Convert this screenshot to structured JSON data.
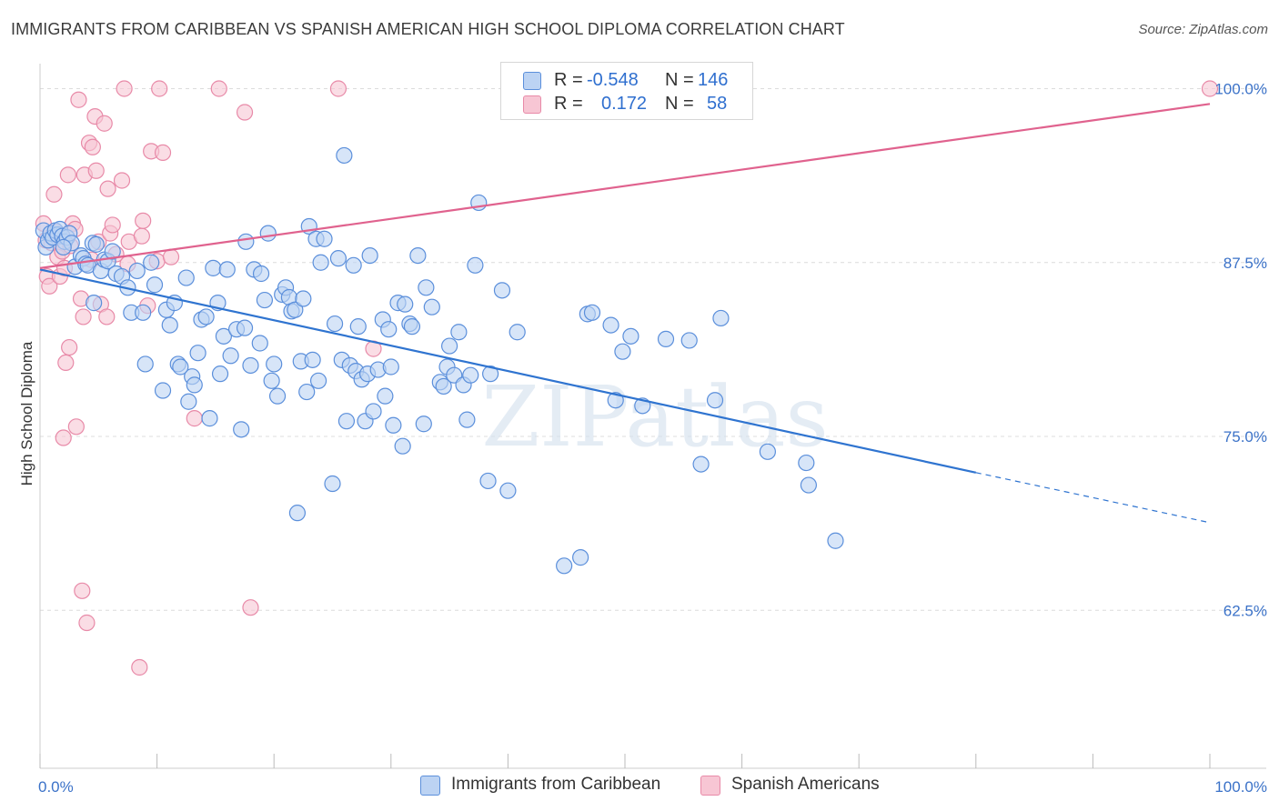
{
  "header": {
    "title": "IMMIGRANTS FROM CARIBBEAN VS SPANISH AMERICAN HIGH SCHOOL DIPLOMA CORRELATION CHART",
    "source": "Source: ZipAtlas.com"
  },
  "watermark": "ZIPatlas",
  "colors": {
    "blue_fill": "#bcd3f3",
    "blue_stroke": "#5b8fdb",
    "blue_line": "#2f74d0",
    "pink_fill": "#f7c6d4",
    "pink_stroke": "#e88aa8",
    "pink_line": "#e0628e",
    "axis_text": "#3b72c8",
    "grid": "#dcdcdc"
  },
  "legend": {
    "rows": [
      {
        "r_label": "R =",
        "r_value": "-0.548",
        "n_label": "N =",
        "n_value": "146"
      },
      {
        "r_label": "R =",
        "r_value": "0.172",
        "n_label": "N =",
        "n_value": "58"
      }
    ]
  },
  "bottom_legend": {
    "series_a": "Immigrants from Caribbean",
    "series_b": "Spanish Americans"
  },
  "chart_data": {
    "type": "scatter",
    "title": "IMMIGRANTS FROM CARIBBEAN VS SPANISH AMERICAN HIGH SCHOOL DIPLOMA CORRELATION CHART",
    "xlabel": "",
    "ylabel": "High School Diploma",
    "xlim": [
      0,
      100
    ],
    "ylim": [
      50,
      101
    ],
    "x_tick_labels": [
      "0.0%",
      "100.0%"
    ],
    "y_ticks": [
      62.5,
      75.0,
      87.5,
      100.0
    ],
    "y_tick_labels": [
      "62.5%",
      "75.0%",
      "87.5%",
      "100.0%"
    ],
    "grid": true,
    "series": [
      {
        "name": "Immigrants from Caribbean",
        "r": -0.548,
        "n": 146,
        "trend": {
          "x0": 0,
          "y0": 87.0,
          "x1": 80,
          "y1": 72.4,
          "dash_to_x": 100,
          "dash_to_y": 68.8
        },
        "points": [
          [
            0.3,
            89.8
          ],
          [
            0.5,
            88.6
          ],
          [
            0.7,
            89.1
          ],
          [
            0.9,
            89.6
          ],
          [
            1.1,
            89.3
          ],
          [
            1.3,
            89.8
          ],
          [
            1.5,
            89.5
          ],
          [
            1.7,
            89.9
          ],
          [
            1.9,
            89.4
          ],
          [
            2.1,
            89.0
          ],
          [
            2.3,
            89.3
          ],
          [
            2.5,
            89.6
          ],
          [
            2.7,
            88.9
          ],
          [
            3.0,
            87.2
          ],
          [
            3.5,
            88.0
          ],
          [
            3.7,
            87.8
          ],
          [
            3.9,
            87.4
          ],
          [
            4.1,
            87.3
          ],
          [
            4.5,
            88.9
          ],
          [
            4.6,
            84.6
          ],
          [
            4.8,
            88.8
          ],
          [
            5.2,
            86.9
          ],
          [
            5.5,
            87.7
          ],
          [
            5.8,
            87.6
          ],
          [
            6.2,
            88.3
          ],
          [
            6.5,
            86.7
          ],
          [
            7.0,
            86.5
          ],
          [
            7.5,
            85.7
          ],
          [
            7.8,
            83.9
          ],
          [
            8.3,
            86.9
          ],
          [
            8.8,
            83.9
          ],
          [
            9.0,
            80.2
          ],
          [
            9.5,
            87.5
          ],
          [
            9.8,
            85.9
          ],
          [
            10.5,
            78.3
          ],
          [
            10.8,
            84.1
          ],
          [
            11.1,
            83.0
          ],
          [
            11.5,
            84.6
          ],
          [
            11.8,
            80.2
          ],
          [
            12.5,
            86.4
          ],
          [
            12.7,
            77.5
          ],
          [
            13.0,
            79.3
          ],
          [
            13.2,
            78.7
          ],
          [
            13.5,
            81.0
          ],
          [
            13.8,
            83.4
          ],
          [
            14.2,
            83.6
          ],
          [
            14.5,
            76.3
          ],
          [
            14.8,
            87.1
          ],
          [
            15.2,
            84.6
          ],
          [
            15.4,
            79.5
          ],
          [
            15.7,
            82.2
          ],
          [
            16.0,
            87.0
          ],
          [
            16.3,
            80.8
          ],
          [
            16.8,
            82.7
          ],
          [
            17.2,
            75.5
          ],
          [
            17.5,
            82.8
          ],
          [
            17.6,
            89.0
          ],
          [
            18.0,
            80.1
          ],
          [
            18.3,
            87.0
          ],
          [
            18.8,
            81.7
          ],
          [
            18.9,
            86.7
          ],
          [
            19.2,
            84.8
          ],
          [
            19.5,
            89.6
          ],
          [
            19.8,
            79.0
          ],
          [
            20.0,
            80.2
          ],
          [
            20.3,
            77.9
          ],
          [
            20.7,
            85.2
          ],
          [
            21.0,
            85.7
          ],
          [
            21.3,
            85.0
          ],
          [
            21.5,
            84.0
          ],
          [
            21.8,
            84.1
          ],
          [
            22.0,
            69.5
          ],
          [
            22.3,
            80.4
          ],
          [
            22.5,
            84.9
          ],
          [
            22.8,
            78.2
          ],
          [
            23.0,
            90.1
          ],
          [
            23.3,
            80.5
          ],
          [
            23.6,
            89.2
          ],
          [
            23.8,
            79.0
          ],
          [
            24.0,
            87.5
          ],
          [
            24.3,
            89.2
          ],
          [
            25.0,
            71.6
          ],
          [
            25.2,
            83.1
          ],
          [
            25.5,
            87.8
          ],
          [
            25.8,
            80.5
          ],
          [
            26.2,
            76.1
          ],
          [
            26.5,
            80.1
          ],
          [
            26.8,
            87.3
          ],
          [
            27.0,
            79.7
          ],
          [
            27.2,
            82.9
          ],
          [
            27.5,
            79.1
          ],
          [
            27.8,
            76.1
          ],
          [
            28.0,
            79.5
          ],
          [
            28.2,
            88.0
          ],
          [
            28.5,
            76.8
          ],
          [
            28.9,
            79.8
          ],
          [
            29.3,
            83.4
          ],
          [
            29.5,
            77.9
          ],
          [
            29.8,
            82.7
          ],
          [
            30.2,
            75.8
          ],
          [
            30.6,
            84.6
          ],
          [
            31.0,
            74.3
          ],
          [
            31.2,
            84.5
          ],
          [
            31.6,
            83.1
          ],
          [
            31.8,
            82.9
          ],
          [
            32.3,
            88.0
          ],
          [
            32.8,
            75.9
          ],
          [
            33.0,
            85.7
          ],
          [
            33.5,
            84.3
          ],
          [
            34.2,
            78.9
          ],
          [
            34.5,
            78.6
          ],
          [
            34.8,
            80.0
          ],
          [
            35.0,
            81.5
          ],
          [
            35.4,
            79.4
          ],
          [
            35.8,
            82.5
          ],
          [
            36.2,
            78.7
          ],
          [
            36.5,
            76.2
          ],
          [
            36.8,
            79.4
          ],
          [
            37.2,
            87.3
          ],
          [
            37.5,
            91.8
          ],
          [
            38.3,
            71.8
          ],
          [
            38.5,
            79.5
          ],
          [
            39.5,
            85.5
          ],
          [
            40.0,
            71.1
          ],
          [
            40.8,
            82.5
          ],
          [
            44.8,
            65.7
          ],
          [
            46.2,
            66.3
          ],
          [
            46.8,
            83.8
          ],
          [
            47.2,
            83.9
          ],
          [
            48.8,
            83.0
          ],
          [
            49.2,
            77.6
          ],
          [
            49.8,
            81.1
          ],
          [
            50.5,
            82.2
          ],
          [
            51.5,
            77.2
          ],
          [
            53.5,
            82.0
          ],
          [
            55.5,
            81.9
          ],
          [
            56.5,
            73.0
          ],
          [
            57.7,
            77.6
          ],
          [
            58.2,
            83.5
          ],
          [
            62.2,
            73.9
          ],
          [
            65.5,
            73.1
          ],
          [
            65.7,
            71.5
          ],
          [
            68.0,
            67.5
          ],
          [
            30.0,
            80.0
          ],
          [
            12.0,
            80.0
          ],
          [
            26.0,
            95.2
          ],
          [
            2.0,
            88.6
          ]
        ]
      },
      {
        "name": "Spanish Americans",
        "r": 0.172,
        "n": 58,
        "trend": {
          "x0": 0,
          "y0": 87.1,
          "x1": 100,
          "y1": 98.9
        },
        "points": [
          [
            0.3,
            90.3
          ],
          [
            0.5,
            89.1
          ],
          [
            0.6,
            86.5
          ],
          [
            0.8,
            85.8
          ],
          [
            1.0,
            88.9
          ],
          [
            1.2,
            92.4
          ],
          [
            1.4,
            89.7
          ],
          [
            1.5,
            87.9
          ],
          [
            1.7,
            86.5
          ],
          [
            1.9,
            88.3
          ],
          [
            2.0,
            74.9
          ],
          [
            2.2,
            80.3
          ],
          [
            2.4,
            93.8
          ],
          [
            2.5,
            81.4
          ],
          [
            2.6,
            88.7
          ],
          [
            2.8,
            90.3
          ],
          [
            3.0,
            89.9
          ],
          [
            3.1,
            75.7
          ],
          [
            3.3,
            99.2
          ],
          [
            3.5,
            84.9
          ],
          [
            3.6,
            63.9
          ],
          [
            3.7,
            83.6
          ],
          [
            3.8,
            93.8
          ],
          [
            4.0,
            61.6
          ],
          [
            4.2,
            96.1
          ],
          [
            4.4,
            87.7
          ],
          [
            4.5,
            95.8
          ],
          [
            4.7,
            98.0
          ],
          [
            4.8,
            94.1
          ],
          [
            5.0,
            89.0
          ],
          [
            5.2,
            84.5
          ],
          [
            5.5,
            97.5
          ],
          [
            5.7,
            83.6
          ],
          [
            5.8,
            92.8
          ],
          [
            6.0,
            89.6
          ],
          [
            6.2,
            90.2
          ],
          [
            6.5,
            88.1
          ],
          [
            7.0,
            93.4
          ],
          [
            7.2,
            100.0
          ],
          [
            7.5,
            87.4
          ],
          [
            7.6,
            89.0
          ],
          [
            8.5,
            58.4
          ],
          [
            8.7,
            89.4
          ],
          [
            8.8,
            90.5
          ],
          [
            9.2,
            84.4
          ],
          [
            9.5,
            95.5
          ],
          [
            10.0,
            87.6
          ],
          [
            10.2,
            100.0
          ],
          [
            10.5,
            95.4
          ],
          [
            11.2,
            87.9
          ],
          [
            13.2,
            76.3
          ],
          [
            15.3,
            100.0
          ],
          [
            17.5,
            98.3
          ],
          [
            18.0,
            62.7
          ],
          [
            25.5,
            100.0
          ],
          [
            28.5,
            81.3
          ],
          [
            100.0,
            100.0
          ],
          [
            2.1,
            87.1
          ]
        ]
      }
    ]
  }
}
